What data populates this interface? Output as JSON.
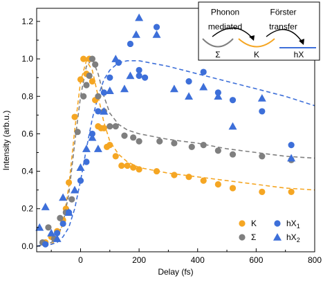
{
  "chart_data": {
    "type": "scatter",
    "xlabel": "Delay (fs)",
    "ylabel": "Intensity (arb.u.)",
    "xlim": [
      -150,
      800
    ],
    "ylim": [
      -0.03,
      1.27
    ],
    "xticks": [
      0,
      200,
      400,
      600,
      800
    ],
    "yticks": [
      0.0,
      0.2,
      0.4,
      0.6,
      0.8,
      1.0,
      1.2
    ],
    "xtick_labels": [
      "0",
      "200",
      "400",
      "600",
      "800"
    ],
    "ytick_labels": [
      "0.0",
      "0.2",
      "0.4",
      "0.6",
      "0.8",
      "1.0",
      "1.2"
    ],
    "grid": false,
    "legend_position": "bottom-right",
    "legend": [
      {
        "label": "K",
        "series": "K"
      },
      {
        "label": "Σ",
        "series": "Sigma"
      },
      {
        "label": "hX",
        "sub": "1",
        "series": "hX1"
      },
      {
        "label": "hX",
        "sub": "2",
        "series": "hX2"
      }
    ],
    "series": [
      {
        "name": "K",
        "marker": "circle",
        "color": "#f5a623",
        "points": [
          [
            -120,
            0.02
          ],
          [
            -100,
            0.05
          ],
          [
            -80,
            0.08
          ],
          [
            -60,
            0.14
          ],
          [
            -50,
            0.2
          ],
          [
            -40,
            0.34
          ],
          [
            -20,
            0.69
          ],
          [
            0,
            0.89
          ],
          [
            10,
            1.0
          ],
          [
            20,
            0.92
          ],
          [
            30,
            1.0
          ],
          [
            40,
            0.88
          ],
          [
            50,
            0.78
          ],
          [
            60,
            0.64
          ],
          [
            70,
            0.63
          ],
          [
            80,
            0.63
          ],
          [
            90,
            0.53
          ],
          [
            100,
            0.54
          ],
          [
            120,
            0.48
          ],
          [
            140,
            0.43
          ],
          [
            160,
            0.43
          ],
          [
            180,
            0.42
          ],
          [
            200,
            0.41
          ],
          [
            260,
            0.4
          ],
          [
            320,
            0.38
          ],
          [
            370,
            0.37
          ],
          [
            420,
            0.35
          ],
          [
            470,
            0.33
          ],
          [
            520,
            0.31
          ],
          [
            620,
            0.29
          ],
          [
            720,
            0.29
          ]
        ]
      },
      {
        "name": "Sigma",
        "marker": "circle",
        "color": "#7f7f7f",
        "points": [
          [
            -130,
            0.02
          ],
          [
            -110,
            0.1
          ],
          [
            -90,
            0.04
          ],
          [
            -70,
            0.15
          ],
          [
            -50,
            0.18
          ],
          [
            -30,
            0.25
          ],
          [
            -10,
            0.61
          ],
          [
            10,
            0.8
          ],
          [
            20,
            0.86
          ],
          [
            30,
            0.91
          ],
          [
            40,
            1.0
          ],
          [
            50,
            0.97
          ],
          [
            60,
            0.8
          ],
          [
            80,
            0.72
          ],
          [
            100,
            0.64
          ],
          [
            120,
            0.64
          ],
          [
            150,
            0.59
          ],
          [
            180,
            0.58
          ],
          [
            200,
            0.56
          ],
          [
            270,
            0.56
          ],
          [
            320,
            0.55
          ],
          [
            380,
            0.53
          ],
          [
            420,
            0.54
          ],
          [
            470,
            0.51
          ],
          [
            520,
            0.49
          ],
          [
            620,
            0.48
          ],
          [
            720,
            0.46
          ]
        ]
      },
      {
        "name": "hX1",
        "marker": "circle",
        "color": "#3d6fd9",
        "points": [
          [
            -120,
            0.01
          ],
          [
            -80,
            0.07
          ],
          [
            -60,
            0.12
          ],
          [
            -40,
            0.18
          ],
          [
            0,
            0.35
          ],
          [
            20,
            0.45
          ],
          [
            40,
            0.6
          ],
          [
            60,
            0.72
          ],
          [
            80,
            0.82
          ],
          [
            100,
            0.9
          ],
          [
            130,
            0.98
          ],
          [
            170,
            1.08
          ],
          [
            200,
            0.94
          ],
          [
            200,
            0.91
          ],
          [
            220,
            0.9
          ],
          [
            260,
            1.17
          ],
          [
            370,
            0.88
          ],
          [
            420,
            0.93
          ],
          [
            470,
            0.82
          ],
          [
            520,
            0.78
          ],
          [
            620,
            0.72
          ],
          [
            720,
            0.54
          ]
        ]
      },
      {
        "name": "hX2",
        "marker": "triangle",
        "color": "#3d6fd9",
        "points": [
          [
            -140,
            0.1
          ],
          [
            -120,
            0.21
          ],
          [
            -100,
            0.07
          ],
          [
            -80,
            0.04
          ],
          [
            -60,
            0.26
          ],
          [
            -40,
            0.18
          ],
          [
            -20,
            0.3
          ],
          [
            0,
            0.42
          ],
          [
            20,
            0.52
          ],
          [
            40,
            0.58
          ],
          [
            60,
            0.52
          ],
          [
            80,
            0.72
          ],
          [
            100,
            0.83
          ],
          [
            120,
            1.0
          ],
          [
            150,
            0.84
          ],
          [
            170,
            0.91
          ],
          [
            190,
            1.13
          ],
          [
            200,
            1.22
          ],
          [
            260,
            1.13
          ],
          [
            320,
            0.84
          ],
          [
            370,
            0.8
          ],
          [
            420,
            0.85
          ],
          [
            470,
            0.8
          ],
          [
            520,
            0.64
          ],
          [
            620,
            0.79
          ],
          [
            720,
            0.47
          ]
        ]
      }
    ],
    "fits": [
      {
        "name": "K fit",
        "color": "#f5a623",
        "style": "dashed",
        "points": [
          [
            -150,
            0.0
          ],
          [
            -100,
            0.01
          ],
          [
            -80,
            0.04
          ],
          [
            -60,
            0.12
          ],
          [
            -40,
            0.32
          ],
          [
            -20,
            0.62
          ],
          [
            0,
            0.88
          ],
          [
            20,
            0.99
          ],
          [
            40,
            0.94
          ],
          [
            60,
            0.8
          ],
          [
            80,
            0.66
          ],
          [
            100,
            0.56
          ],
          [
            130,
            0.49
          ],
          [
            160,
            0.45
          ],
          [
            200,
            0.42
          ],
          [
            300,
            0.39
          ],
          [
            400,
            0.37
          ],
          [
            500,
            0.35
          ],
          [
            600,
            0.33
          ],
          [
            700,
            0.31
          ],
          [
            800,
            0.3
          ]
        ]
      },
      {
        "name": "Sigma fit",
        "color": "#7f7f7f",
        "style": "dashed",
        "points": [
          [
            -150,
            0.0
          ],
          [
            -100,
            0.02
          ],
          [
            -80,
            0.05
          ],
          [
            -60,
            0.12
          ],
          [
            -40,
            0.28
          ],
          [
            -20,
            0.55
          ],
          [
            0,
            0.8
          ],
          [
            20,
            0.96
          ],
          [
            40,
            1.0
          ],
          [
            60,
            0.92
          ],
          [
            80,
            0.8
          ],
          [
            100,
            0.71
          ],
          [
            130,
            0.65
          ],
          [
            160,
            0.62
          ],
          [
            200,
            0.6
          ],
          [
            300,
            0.57
          ],
          [
            400,
            0.55
          ],
          [
            500,
            0.52
          ],
          [
            600,
            0.5
          ],
          [
            700,
            0.48
          ],
          [
            800,
            0.47
          ]
        ]
      },
      {
        "name": "hX fit",
        "color": "#3d6fd9",
        "style": "dashed",
        "points": [
          [
            -150,
            0.0
          ],
          [
            -100,
            0.01
          ],
          [
            -80,
            0.02
          ],
          [
            -60,
            0.05
          ],
          [
            -40,
            0.1
          ],
          [
            -20,
            0.2
          ],
          [
            0,
            0.35
          ],
          [
            20,
            0.52
          ],
          [
            40,
            0.68
          ],
          [
            60,
            0.8
          ],
          [
            80,
            0.89
          ],
          [
            100,
            0.94
          ],
          [
            130,
            0.98
          ],
          [
            160,
            0.99
          ],
          [
            200,
            0.99
          ],
          [
            300,
            0.96
          ],
          [
            400,
            0.92
          ],
          [
            500,
            0.88
          ],
          [
            600,
            0.84
          ],
          [
            700,
            0.8
          ],
          [
            800,
            0.75
          ]
        ]
      }
    ],
    "inset": {
      "labels": [
        {
          "text": "Phonon",
          "x": 0.22,
          "y": 0.22
        },
        {
          "text": "mediated",
          "x": 0.22,
          "y": 0.47
        },
        {
          "text": "Förster",
          "x": 0.7,
          "y": 0.22
        },
        {
          "text": "transfer",
          "x": 0.7,
          "y": 0.47
        }
      ],
      "valley_labels": [
        "Σ",
        "K",
        "hX"
      ],
      "valley_colors": [
        "#7f7f7f",
        "#f5a623",
        "#3d6fd9"
      ]
    }
  }
}
